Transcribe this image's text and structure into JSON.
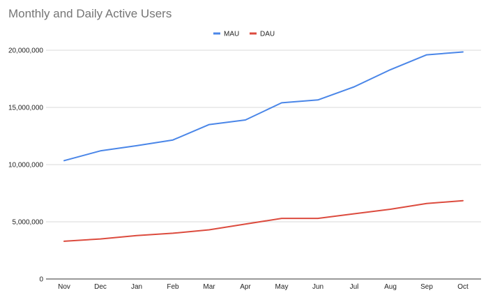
{
  "chart_data": {
    "type": "line",
    "title": "Monthly and Daily Active Users",
    "categories": [
      "Nov",
      "Dec",
      "Jan",
      "Feb",
      "Mar",
      "Apr",
      "May",
      "Jun",
      "Jul",
      "Aug",
      "Sep",
      "Oct"
    ],
    "series": [
      {
        "name": "MAU",
        "color": "#4a86e8",
        "values": [
          10350000,
          11200000,
          11650000,
          12150000,
          13500000,
          13900000,
          15400000,
          15650000,
          16800000,
          18300000,
          19600000,
          19850000
        ]
      },
      {
        "name": "DAU",
        "color": "#dc4b3e",
        "values": [
          3300000,
          3500000,
          3800000,
          4000000,
          4300000,
          4800000,
          5300000,
          5300000,
          5700000,
          6100000,
          6600000,
          6850000
        ]
      }
    ],
    "ylim": [
      0,
      20000000
    ],
    "yticks": [
      0,
      5000000,
      10000000,
      15000000,
      20000000
    ],
    "ytick_labels": [
      "0",
      "5,000,000",
      "10,000,000",
      "15,000,000",
      "20,000,000"
    ],
    "xlabel": "",
    "ylabel": "",
    "grid": true,
    "legend_position": "top-center"
  }
}
